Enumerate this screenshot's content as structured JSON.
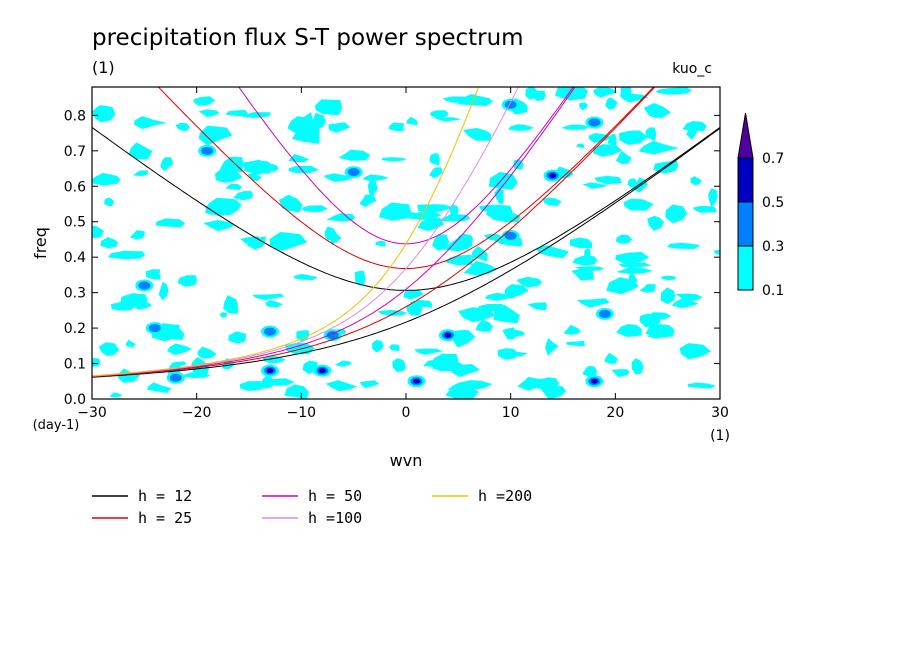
{
  "chart_data": {
    "type": "heatmap",
    "title": "precipitation flux S-T power spectrum",
    "title_unit": "(1)",
    "run_label": "kuo_c",
    "xlabel": "wvn",
    "ylabel": "freq",
    "x_unit": "(1)",
    "y_unit": "(day-1)",
    "xlim": [
      -30,
      30
    ],
    "ylim": [
      0,
      0.88
    ],
    "x_ticks": [
      -30,
      -20,
      -10,
      0,
      10,
      20,
      30
    ],
    "y_ticks": [
      0.0,
      0.1,
      0.2,
      0.3,
      0.4,
      0.5,
      0.6,
      0.7,
      0.8
    ],
    "colorbar": {
      "levels": [
        "0.1",
        "0.3",
        "0.5",
        "0.7"
      ],
      "colors": [
        "#00ffff",
        "#0080ff",
        "#0000c0",
        "#5000a0"
      ],
      "extend": "max"
    },
    "dispersion_curves": [
      {
        "name": "h = 12",
        "h": 12,
        "color": "#000000"
      },
      {
        "name": "h = 25",
        "h": 25,
        "color": "#e00000"
      },
      {
        "name": "h = 50",
        "h": 50,
        "color": "#d000c0"
      },
      {
        "name": "h =100",
        "h": 100,
        "color": "#e08ce0"
      },
      {
        "name": "h =200",
        "h": 200,
        "color": "#f0c000"
      }
    ],
    "blobs_strong": [
      {
        "x": 4,
        "y": 0.18,
        "level": 0.5
      },
      {
        "x": 14,
        "y": 0.63,
        "level": 0.5
      },
      {
        "x": -13,
        "y": 0.08,
        "level": 0.5
      },
      {
        "x": -8,
        "y": 0.08,
        "level": 0.5
      },
      {
        "x": 1,
        "y": 0.05,
        "level": 0.5
      },
      {
        "x": 18,
        "y": 0.05,
        "level": 0.5
      },
      {
        "x": -22,
        "y": 0.06,
        "level": 0.3
      },
      {
        "x": -25,
        "y": 0.32,
        "level": 0.3
      },
      {
        "x": -24,
        "y": 0.2,
        "level": 0.3
      },
      {
        "x": -13,
        "y": 0.19,
        "level": 0.3
      },
      {
        "x": 19,
        "y": 0.24,
        "level": 0.3
      },
      {
        "x": 10,
        "y": 0.46,
        "level": 0.3
      },
      {
        "x": 18,
        "y": 0.78,
        "level": 0.3
      },
      {
        "x": 10,
        "y": 0.83,
        "level": 0.3
      },
      {
        "x": -5,
        "y": 0.64,
        "level": 0.3
      },
      {
        "x": -19,
        "y": 0.7,
        "level": 0.3
      },
      {
        "x": -7,
        "y": 0.18,
        "level": 0.3
      }
    ]
  }
}
